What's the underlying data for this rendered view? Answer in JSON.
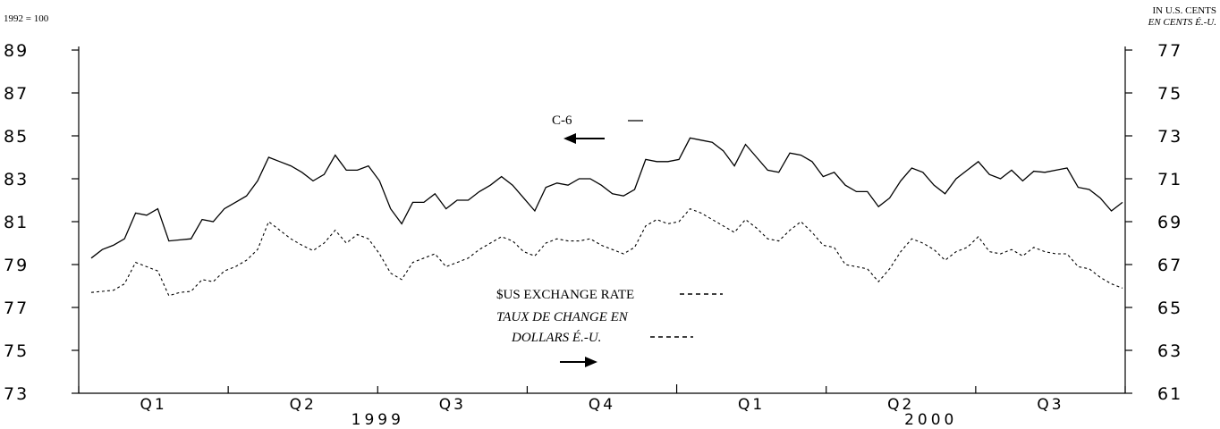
{
  "chart_data": {
    "type": "line",
    "left_axis": {
      "unit_label": "1992 = 100",
      "ticks": [
        73,
        75,
        77,
        79,
        81,
        83,
        85,
        87,
        89
      ],
      "ylim": [
        73,
        89
      ]
    },
    "right_axis": {
      "unit_label_en": "IN U.S. CENTS",
      "unit_label_fr": "EN CENTS É.-U.",
      "ticks": [
        61,
        63,
        65,
        67,
        69,
        71,
        73,
        75,
        77
      ],
      "ylim": [
        61,
        77
      ]
    },
    "quarters": [
      "Q1",
      "Q2",
      "Q3",
      "Q4",
      "Q1",
      "Q2",
      "Q3"
    ],
    "years": [
      "1999",
      "2000"
    ],
    "series": [
      {
        "name": "C-6",
        "axis": "left",
        "style": "solid",
        "values": [
          79.3,
          79.7,
          79.9,
          80.2,
          81.4,
          81.3,
          81.6,
          80.1,
          80.15,
          80.2,
          81.1,
          81.0,
          81.6,
          81.9,
          82.2,
          82.9,
          84.0,
          83.8,
          83.6,
          83.3,
          82.9,
          83.2,
          84.1,
          83.4,
          83.4,
          83.6,
          82.9,
          81.6,
          80.9,
          81.9,
          81.9,
          82.3,
          81.6,
          82.0,
          82.0,
          82.4,
          82.7,
          83.1,
          82.7,
          82.1,
          81.5,
          82.6,
          82.8,
          82.7,
          83.0,
          83.0,
          82.7,
          82.3,
          82.2,
          82.5,
          83.9,
          83.8,
          83.8,
          83.9,
          84.9,
          84.8,
          84.7,
          84.3,
          83.6,
          84.6,
          84.0,
          83.4,
          83.3,
          84.2,
          84.1,
          83.8,
          83.1,
          83.3,
          82.7,
          82.4,
          82.4,
          81.7,
          82.1,
          82.9,
          83.5,
          83.3,
          82.7,
          82.3,
          83.0,
          83.4,
          83.8,
          83.2,
          83.0,
          83.4,
          82.9,
          83.35,
          83.3,
          83.4,
          83.5,
          82.6,
          82.5,
          82.1,
          81.5,
          81.9
        ]
      },
      {
        "name": "$US EXCHANGE RATE",
        "name_fr": "TAUX DE CHANGE EN DOLLARS É.-U.",
        "axis": "right",
        "style": "dashed",
        "values": [
          65.7,
          65.75,
          65.8,
          66.1,
          67.1,
          66.9,
          66.7,
          65.55,
          65.7,
          65.75,
          66.3,
          66.2,
          66.7,
          66.9,
          67.2,
          67.7,
          69.0,
          68.6,
          68.2,
          67.9,
          67.65,
          68.0,
          68.6,
          68.0,
          68.4,
          68.2,
          67.5,
          66.6,
          66.3,
          67.1,
          67.3,
          67.5,
          66.9,
          67.1,
          67.3,
          67.7,
          68.0,
          68.3,
          68.1,
          67.6,
          67.4,
          68.0,
          68.2,
          68.1,
          68.1,
          68.2,
          67.9,
          67.7,
          67.5,
          67.8,
          68.8,
          69.1,
          68.9,
          69.0,
          69.6,
          69.4,
          69.1,
          68.8,
          68.5,
          69.1,
          68.7,
          68.2,
          68.1,
          68.6,
          69.0,
          68.5,
          67.9,
          67.8,
          67.0,
          66.9,
          66.8,
          66.2,
          66.8,
          67.6,
          68.2,
          68.0,
          67.7,
          67.2,
          67.6,
          67.8,
          68.3,
          67.6,
          67.5,
          67.7,
          67.4,
          67.8,
          67.6,
          67.5,
          67.5,
          66.9,
          66.8,
          66.4,
          66.1,
          65.9
        ]
      }
    ],
    "annotations": {
      "c6_label": "C-6",
      "fx_label_en": "$US EXCHANGE RATE",
      "fx_label_fr_line1": "TAUX DE CHANGE EN",
      "fx_label_fr_line2": "DOLLARS É.-U."
    }
  }
}
